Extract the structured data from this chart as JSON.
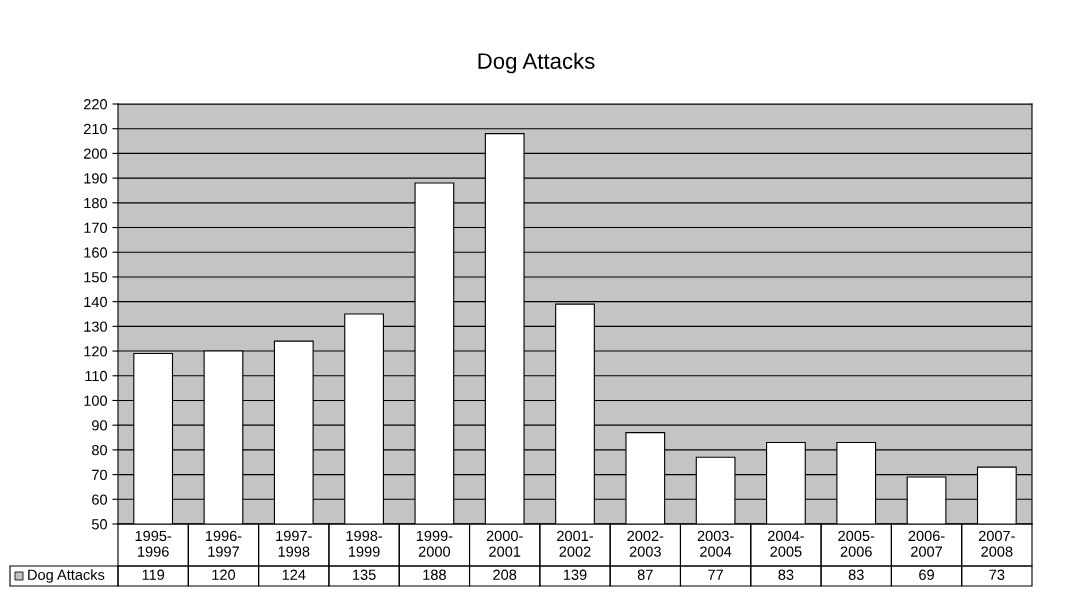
{
  "chart_data": {
    "type": "bar",
    "title": "Dog Attacks",
    "categories": [
      "1995-\n1996",
      "1996-\n1997",
      "1997-\n1998",
      "1998-\n1999",
      "1999-\n2000",
      "2000-\n2001",
      "2001-\n2002",
      "2002-\n2003",
      "2003-\n2004",
      "2004-\n2005",
      "2005-\n2006",
      "2006-\n2007",
      "2007-\n2008"
    ],
    "series": [
      {
        "name": "Dog Attacks",
        "color": "#ffffff",
        "values": [
          119,
          120,
          124,
          135,
          188,
          208,
          139,
          87,
          77,
          83,
          83,
          69,
          73
        ]
      }
    ],
    "ylim": [
      50,
      220
    ],
    "yticks": [
      50,
      60,
      70,
      80,
      90,
      100,
      110,
      120,
      130,
      140,
      150,
      160,
      170,
      180,
      190,
      200,
      210,
      220
    ],
    "grid": "y",
    "legend": "bottom",
    "data_labels": true
  }
}
